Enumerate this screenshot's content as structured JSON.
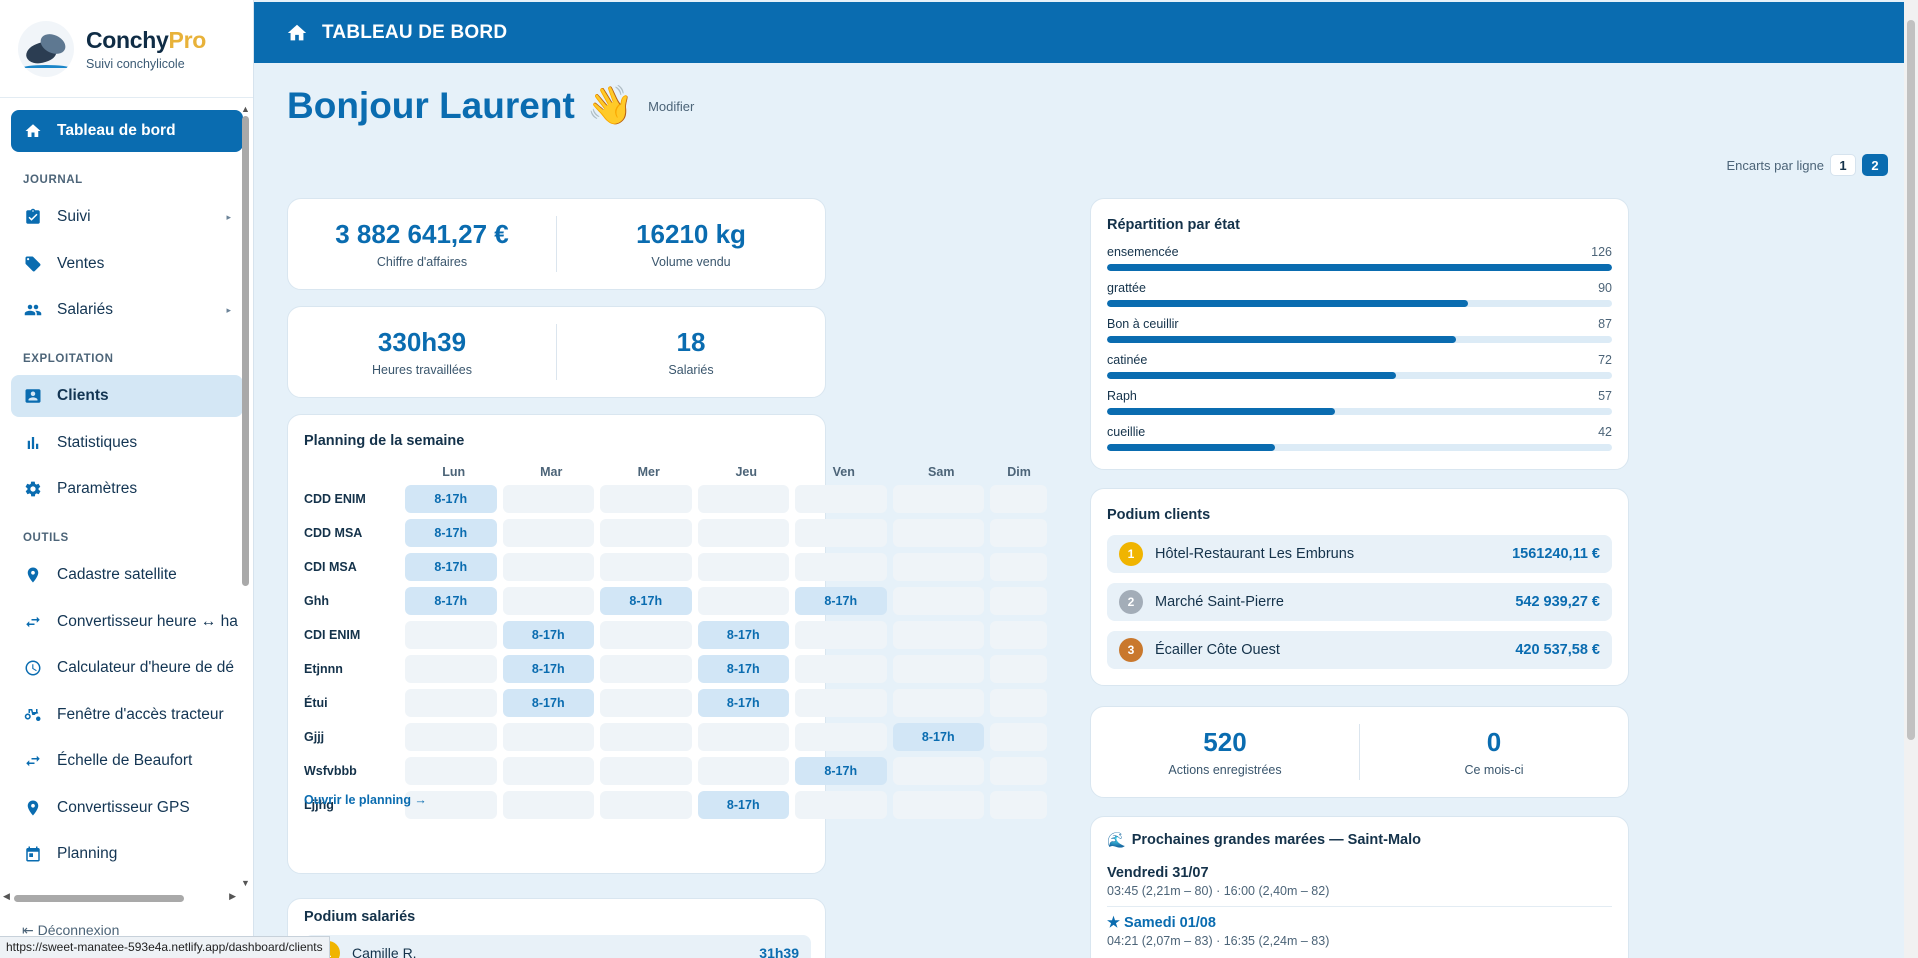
{
  "brand": {
    "name_main": "Conchy",
    "name_accent": "Pro",
    "subtitle": "Suivi conchylicole"
  },
  "nav": {
    "dashboard": "Tableau de bord",
    "section_journal": "JOURNAL",
    "suivi": "Suivi",
    "ventes": "Ventes",
    "salaries": "Salariés",
    "section_exploitation": "EXPLOITATION",
    "clients": "Clients",
    "statistiques": "Statistiques",
    "parametres": "Paramètres",
    "section_outils": "OUTILS",
    "cadastre": "Cadastre satellite",
    "convertisseur_heure": "Convertisseur heure ↔ ha",
    "calculateur": "Calculateur d'heure de dé",
    "fenetre": "Fenêtre d'accès tracteur",
    "beaufort": "Échelle de Beaufort",
    "gps": "Convertisseur GPS",
    "planning": "Planning",
    "logout": "Déconnexion"
  },
  "status_url": "https://sweet-manatee-593e4a.netlify.app/dashboard/clients",
  "header": {
    "title": "TABLEAU DE BORD"
  },
  "greeting": {
    "text": "Bonjour Laurent",
    "emoji": "👋",
    "edit": "Modifier"
  },
  "per_line": {
    "label": "Encarts par ligne",
    "opt1": "1",
    "opt2": "2",
    "selected": "2"
  },
  "kpi1": {
    "ca_value": "3 882 641,27 €",
    "ca_label": "Chiffre d'affaires",
    "vol_value": "16210 kg",
    "vol_label": "Volume vendu"
  },
  "kpi2": {
    "hours_value": "330h39",
    "hours_label": "Heures travaillées",
    "emp_value": "18",
    "emp_label": "Salariés"
  },
  "planning": {
    "title": "Planning de la semaine",
    "days": [
      "Lun",
      "Mar",
      "Mer",
      "Jeu",
      "Ven",
      "Sam",
      "Dim"
    ],
    "rows": [
      {
        "name": "CDD ENIM",
        "slots": [
          "8-17h",
          "",
          "",
          "",
          "",
          "",
          ""
        ]
      },
      {
        "name": "CDD MSA",
        "slots": [
          "8-17h",
          "",
          "",
          "",
          "",
          "",
          ""
        ]
      },
      {
        "name": "CDI MSA",
        "slots": [
          "8-17h",
          "",
          "",
          "",
          "",
          "",
          ""
        ]
      },
      {
        "name": "Ghh",
        "slots": [
          "8-17h",
          "",
          "8-17h",
          "",
          "8-17h",
          "",
          ""
        ]
      },
      {
        "name": "CDI ENIM",
        "slots": [
          "",
          "8-17h",
          "",
          "8-17h",
          "",
          "",
          ""
        ]
      },
      {
        "name": "Etjnnn",
        "slots": [
          "",
          "8-17h",
          "",
          "8-17h",
          "",
          "",
          ""
        ]
      },
      {
        "name": "Étui",
        "slots": [
          "",
          "8-17h",
          "",
          "8-17h",
          "",
          "",
          ""
        ]
      },
      {
        "name": "Gjjj",
        "slots": [
          "",
          "",
          "",
          "",
          "",
          "8-17h",
          ""
        ]
      },
      {
        "name": "Wsfvbbb",
        "slots": [
          "",
          "",
          "",
          "",
          "8-17h",
          "",
          ""
        ]
      },
      {
        "name": "Ljjhg",
        "slots": [
          "",
          "",
          "",
          "8-17h",
          "",
          "",
          ""
        ]
      }
    ],
    "link": "Ouvrir le planning →"
  },
  "podium_salaries": {
    "title": "Podium salariés",
    "first_name": "Camille R.",
    "first_value": "31h39"
  },
  "repartition": {
    "title": "Répartition par état",
    "max": 126,
    "items": [
      {
        "label": "ensemencée",
        "value": 126
      },
      {
        "label": "grattée",
        "value": 90
      },
      {
        "label": "Bon à ceuillir",
        "value": 87
      },
      {
        "label": "catinée",
        "value": 72
      },
      {
        "label": "Raph",
        "value": 57
      },
      {
        "label": "cueillie",
        "value": 42
      }
    ]
  },
  "podium_clients": {
    "title": "Podium clients",
    "items": [
      {
        "rank": "1",
        "name": "Hôtel-Restaurant Les Embruns",
        "amount": "1561240,11 €",
        "color": "#f0b400"
      },
      {
        "rank": "2",
        "name": "Marché Saint-Pierre",
        "amount": "542 939,27 €",
        "color": "#a3adb8"
      },
      {
        "rank": "3",
        "name": "Écailler Côte Ouest",
        "amount": "420 537,58 €",
        "color": "#c9782d"
      }
    ]
  },
  "actions": {
    "total_value": "520",
    "total_label": "Actions enregistrées",
    "month_value": "0",
    "month_label": "Ce mois-ci"
  },
  "tides": {
    "title": "Prochaines grandes marées — Saint-Malo",
    "items": [
      {
        "day": "Vendredi 31/07",
        "detail": "03:45 (2,21m – 80) · 16:00 (2,40m – 82)"
      },
      {
        "day": "★ Samedi 01/08",
        "detail": "04:21 (2,07m – 83) · 16:35 (2,24m – 83)"
      }
    ]
  },
  "colors": {
    "primary": "#0a6cb0",
    "background": "#e6f1f9",
    "accent": "#e8b23a"
  }
}
